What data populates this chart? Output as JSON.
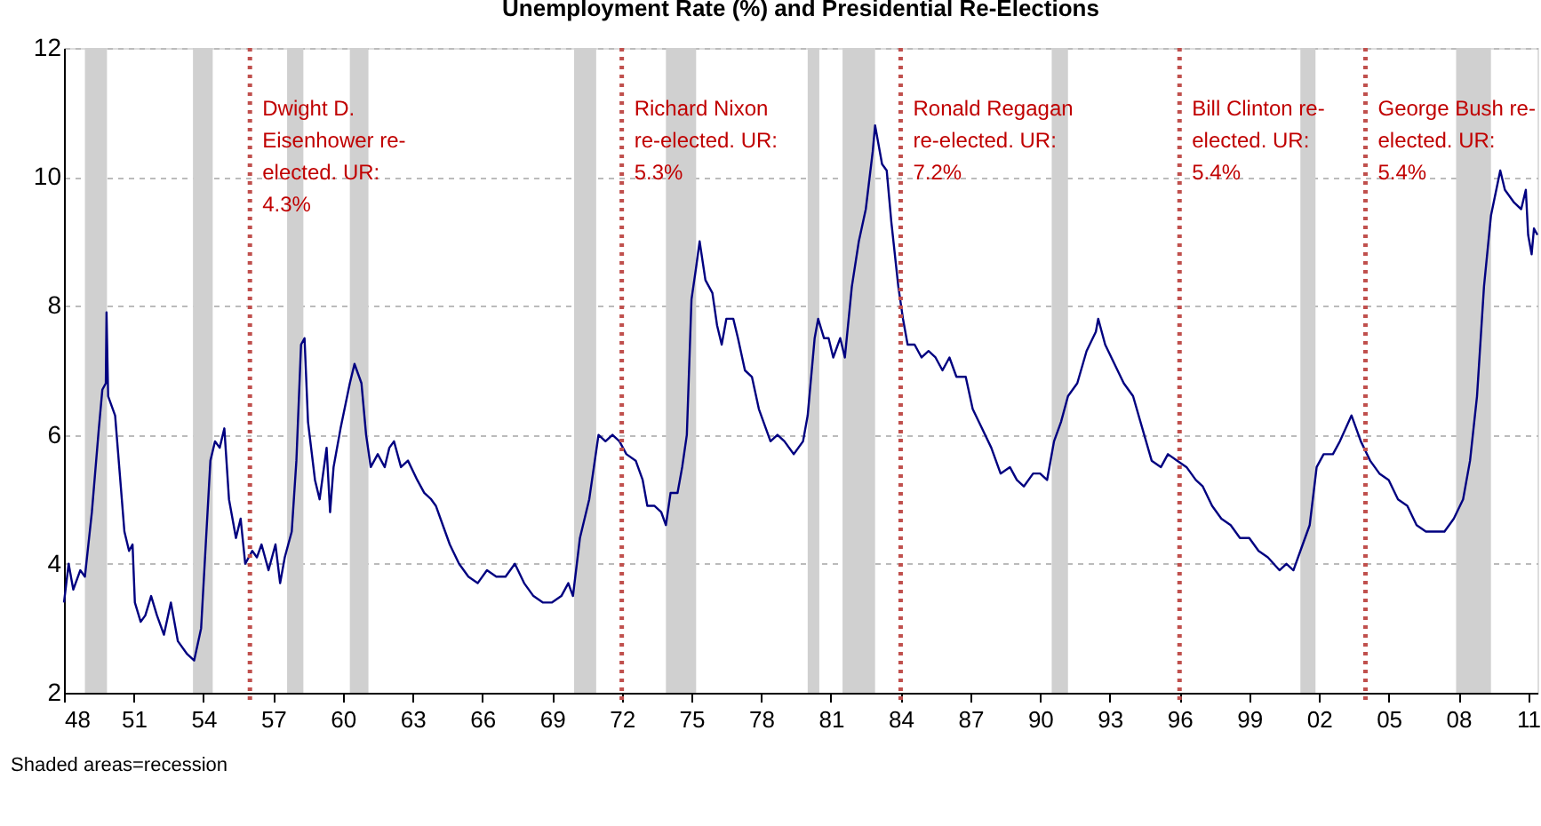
{
  "chart_data": {
    "type": "line",
    "title": "Unemployment Rate (%) and Presidential Re-Elections",
    "x": [
      1948.0,
      1948.2,
      1948.4,
      1948.7,
      1948.9,
      1949.2,
      1949.5,
      1949.65,
      1949.8,
      1949.83,
      1949.9,
      1950.0,
      1950.2,
      1950.4,
      1950.6,
      1950.8,
      1950.95,
      1951.05,
      1951.3,
      1951.5,
      1951.75,
      1952.0,
      1952.3,
      1952.6,
      1952.9,
      1953.3,
      1953.6,
      1953.9,
      1954.1,
      1954.3,
      1954.5,
      1954.7,
      1954.9,
      1955.1,
      1955.4,
      1955.6,
      1955.8,
      1956.1,
      1956.3,
      1956.5,
      1956.8,
      1957.1,
      1957.3,
      1957.5,
      1957.8,
      1958.0,
      1958.2,
      1958.35,
      1958.5,
      1958.8,
      1959.0,
      1959.3,
      1959.45,
      1959.6,
      1959.9,
      1960.3,
      1960.5,
      1960.8,
      1961.0,
      1961.2,
      1961.5,
      1961.8,
      1962.0,
      1962.2,
      1962.5,
      1962.8,
      1963.2,
      1963.5,
      1963.8,
      1964.0,
      1964.3,
      1964.6,
      1965.0,
      1965.4,
      1965.8,
      1966.2,
      1966.6,
      1967.0,
      1967.4,
      1967.8,
      1968.2,
      1968.6,
      1969.0,
      1969.4,
      1969.7,
      1969.9,
      1970.2,
      1970.6,
      1970.8,
      1971.0,
      1971.3,
      1971.6,
      1971.9,
      1972.2,
      1972.6,
      1972.9,
      1973.1,
      1973.4,
      1973.7,
      1973.9,
      1974.1,
      1974.4,
      1974.6,
      1974.8,
      1975.0,
      1975.2,
      1975.35,
      1975.6,
      1975.9,
      1976.1,
      1976.3,
      1976.5,
      1976.8,
      1977.0,
      1977.3,
      1977.6,
      1977.9,
      1978.2,
      1978.4,
      1978.7,
      1979.0,
      1979.4,
      1979.8,
      1980.0,
      1980.3,
      1980.45,
      1980.7,
      1980.9,
      1981.1,
      1981.4,
      1981.6,
      1981.9,
      1982.2,
      1982.5,
      1982.8,
      1982.9,
      1983.2,
      1983.4,
      1983.6,
      1983.9,
      1984.1,
      1984.3,
      1984.6,
      1984.9,
      1985.2,
      1985.5,
      1985.8,
      1986.1,
      1986.4,
      1986.8,
      1987.1,
      1987.5,
      1987.9,
      1988.3,
      1988.7,
      1989.0,
      1989.3,
      1989.7,
      1990.0,
      1990.3,
      1990.6,
      1990.9,
      1991.2,
      1991.6,
      1992.0,
      1992.4,
      1992.5,
      1992.8,
      1993.2,
      1993.6,
      1994.0,
      1994.4,
      1994.8,
      1995.2,
      1995.5,
      1995.9,
      1996.3,
      1996.7,
      1997.0,
      1997.4,
      1997.8,
      1998.2,
      1998.6,
      1999.0,
      1999.4,
      1999.8,
      2000.3,
      2000.6,
      2000.9,
      2001.2,
      2001.6,
      2001.9,
      2002.2,
      2002.6,
      2002.9,
      2003.4,
      2003.8,
      2004.2,
      2004.6,
      2005.0,
      2005.4,
      2005.8,
      2006.2,
      2006.6,
      2007.0,
      2007.4,
      2007.8,
      2008.2,
      2008.5,
      2008.8,
      2009.1,
      2009.4,
      2009.8,
      2010.0,
      2010.4,
      2010.7,
      2010.9,
      2011.0,
      2011.15,
      2011.25,
      2011.4
    ],
    "series": [
      {
        "color": "#000080",
        "values": [
          3.4,
          4.0,
          3.6,
          3.9,
          3.8,
          4.8,
          6.1,
          6.7,
          6.8,
          7.9,
          6.6,
          6.5,
          6.3,
          5.4,
          4.5,
          4.2,
          4.3,
          3.4,
          3.1,
          3.2,
          3.5,
          3.2,
          2.9,
          3.4,
          2.8,
          2.6,
          2.5,
          3.0,
          4.3,
          5.6,
          5.9,
          5.8,
          6.1,
          5.0,
          4.4,
          4.7,
          4.0,
          4.2,
          4.1,
          4.3,
          3.9,
          4.3,
          3.7,
          4.1,
          4.5,
          5.6,
          7.4,
          7.5,
          6.2,
          5.3,
          5.0,
          5.8,
          4.8,
          5.5,
          6.1,
          6.8,
          7.1,
          6.8,
          6.0,
          5.5,
          5.7,
          5.5,
          5.8,
          5.9,
          5.5,
          5.6,
          5.3,
          5.1,
          5.0,
          4.9,
          4.6,
          4.3,
          4.0,
          3.8,
          3.7,
          3.9,
          3.8,
          3.8,
          4.0,
          3.7,
          3.5,
          3.4,
          3.4,
          3.5,
          3.7,
          3.5,
          4.4,
          5.0,
          5.5,
          6.0,
          5.9,
          6.0,
          5.9,
          5.7,
          5.6,
          5.3,
          4.9,
          4.9,
          4.8,
          4.6,
          5.1,
          5.1,
          5.5,
          6.0,
          8.1,
          8.6,
          9.0,
          8.4,
          8.2,
          7.7,
          7.4,
          7.8,
          7.8,
          7.5,
          7.0,
          6.9,
          6.4,
          6.1,
          5.9,
          6.0,
          5.9,
          5.7,
          5.9,
          6.3,
          7.5,
          7.8,
          7.5,
          7.5,
          7.2,
          7.5,
          7.2,
          8.3,
          9.0,
          9.5,
          10.4,
          10.8,
          10.2,
          10.1,
          9.3,
          8.3,
          7.8,
          7.4,
          7.4,
          7.2,
          7.3,
          7.2,
          7.0,
          7.2,
          6.9,
          6.9,
          6.4,
          6.1,
          5.8,
          5.4,
          5.5,
          5.3,
          5.2,
          5.4,
          5.4,
          5.3,
          5.9,
          6.2,
          6.6,
          6.8,
          7.3,
          7.6,
          7.8,
          7.4,
          7.1,
          6.8,
          6.6,
          6.1,
          5.6,
          5.5,
          5.7,
          5.6,
          5.5,
          5.3,
          5.2,
          4.9,
          4.7,
          4.6,
          4.4,
          4.4,
          4.2,
          4.1,
          3.9,
          4.0,
          3.9,
          4.2,
          4.6,
          5.5,
          5.7,
          5.7,
          5.9,
          6.3,
          5.9,
          5.6,
          5.4,
          5.3,
          5.0,
          4.9,
          4.6,
          4.5,
          4.5,
          4.5,
          4.7,
          5.0,
          5.6,
          6.6,
          8.3,
          9.4,
          10.1,
          9.8,
          9.6,
          9.5,
          9.8,
          9.1,
          8.8,
          9.2,
          9.1
        ]
      }
    ],
    "xlim": [
      1948,
      2011.4
    ],
    "xticks": [
      {
        "value": 1948,
        "label": "48"
      },
      {
        "value": 1951,
        "label": "51"
      },
      {
        "value": 1954,
        "label": "54"
      },
      {
        "value": 1957,
        "label": "57"
      },
      {
        "value": 1960,
        "label": "60"
      },
      {
        "value": 1963,
        "label": "63"
      },
      {
        "value": 1966,
        "label": "66"
      },
      {
        "value": 1969,
        "label": "69"
      },
      {
        "value": 1972,
        "label": "72"
      },
      {
        "value": 1975,
        "label": "75"
      },
      {
        "value": 1978,
        "label": "78"
      },
      {
        "value": 1981,
        "label": "81"
      },
      {
        "value": 1984,
        "label": "84"
      },
      {
        "value": 1987,
        "label": "87"
      },
      {
        "value": 1990,
        "label": "90"
      },
      {
        "value": 1993,
        "label": "93"
      },
      {
        "value": 1996,
        "label": "96"
      },
      {
        "value": 1999,
        "label": "99"
      },
      {
        "value": 2002,
        "label": "02"
      },
      {
        "value": 2005,
        "label": "05"
      },
      {
        "value": 2008,
        "label": "08"
      },
      {
        "value": 2011,
        "label": "11"
      }
    ],
    "ylim": [
      2,
      12
    ],
    "yticks": [
      2,
      4,
      6,
      8,
      10,
      12
    ],
    "grid": "y",
    "marker": "none",
    "line_style": "solid",
    "bands": [
      {
        "axis": "x",
        "from": 1948.9,
        "to": 1949.85,
        "color": "#d0d0d0"
      },
      {
        "axis": "x",
        "from": 1953.55,
        "to": 1954.4,
        "color": "#d0d0d0"
      },
      {
        "axis": "x",
        "from": 1957.6,
        "to": 1958.3,
        "color": "#d0d0d0"
      },
      {
        "axis": "x",
        "from": 1960.3,
        "to": 1961.1,
        "color": "#d0d0d0"
      },
      {
        "axis": "x",
        "from": 1969.95,
        "to": 1970.9,
        "color": "#d0d0d0"
      },
      {
        "axis": "x",
        "from": 1973.9,
        "to": 1975.2,
        "color": "#d0d0d0"
      },
      {
        "axis": "x",
        "from": 1980.0,
        "to": 1980.5,
        "color": "#d0d0d0"
      },
      {
        "axis": "x",
        "from": 1981.5,
        "to": 1982.9,
        "color": "#d0d0d0"
      },
      {
        "axis": "x",
        "from": 1990.5,
        "to": 1991.2,
        "color": "#d0d0d0"
      },
      {
        "axis": "x",
        "from": 2001.2,
        "to": 2001.85,
        "color": "#d0d0d0"
      },
      {
        "axis": "x",
        "from": 2007.9,
        "to": 2009.4,
        "color": "#d0d0d0"
      }
    ],
    "ref_lines": [
      {
        "axis": "x",
        "value": 1956,
        "color": "#c0504d",
        "line_style": "dotted"
      },
      {
        "axis": "x",
        "value": 1972,
        "color": "#c0504d",
        "line_style": "dotted"
      },
      {
        "axis": "x",
        "value": 1984,
        "color": "#c0504d",
        "line_style": "dotted"
      },
      {
        "axis": "x",
        "value": 1996,
        "color": "#c0504d",
        "line_style": "dotted"
      },
      {
        "axis": "x",
        "value": 2004,
        "color": "#c0504d",
        "line_style": "dotted"
      }
    ],
    "annotations": [
      {
        "text": "Dwight D. Eisenhower re-elected. UR: 4.3%",
        "x": 1956,
        "y": 11.2
      },
      {
        "text": "Richard Nixon re-elected. UR: 5.3%",
        "x": 1972,
        "y": 11.2
      },
      {
        "text": "Ronald Regagan re-elected. UR: 7.2%",
        "x": 1984,
        "y": 11.2
      },
      {
        "text": "Bill Clinton re-elected. UR: 5.4%",
        "x": 1996,
        "y": 11.2
      },
      {
        "text": "George Bush re-elected. UR: 5.4%",
        "x": 2004,
        "y": 11.2
      },
      "Shaded areas=recession"
    ]
  }
}
